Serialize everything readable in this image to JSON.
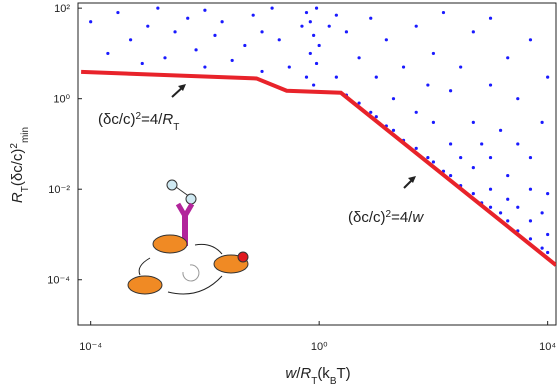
{
  "chart_data": {
    "type": "scatter",
    "xlabel": [
      {
        "text": "w",
        "style": "italic"
      },
      {
        "text": "/",
        "style": "normal"
      },
      {
        "text": "R",
        "style": "italic"
      },
      {
        "text": "T",
        "style": "sub"
      },
      {
        "text": "(k",
        "style": "normal"
      },
      {
        "text": "B",
        "style": "sub"
      },
      {
        "text": "T)",
        "style": "normal"
      }
    ],
    "ylabel": [
      {
        "text": "R",
        "style": "italic"
      },
      {
        "text": "T",
        "style": "sub"
      },
      {
        "text": "(δc/c)",
        "style": "normal"
      },
      {
        "text": "2",
        "style": "sup"
      },
      {
        "text": "min",
        "style": "sub"
      }
    ],
    "annotations": [
      [
        {
          "text": "(δc/c)",
          "style": "normal"
        },
        {
          "text": "2",
          "style": "sup"
        },
        {
          "text": "=4/",
          "style": "normal"
        },
        {
          "text": "R",
          "style": "italic"
        },
        {
          "text": "T",
          "style": "sub"
        }
      ],
      [
        {
          "text": "(δc/c)",
          "style": "normal"
        },
        {
          "text": "2",
          "style": "sup"
        },
        {
          "text": "=4/",
          "style": "normal"
        },
        {
          "text": "w",
          "style": "italic"
        }
      ]
    ],
    "log_x": true,
    "log_y": true,
    "xlim": [
      6e-05,
      14000
    ],
    "ylim": [
      1e-05,
      130
    ],
    "xticks": [
      {
        "value": 0.0001,
        "label": "10⁻⁴"
      },
      {
        "value": 1,
        "label": "10⁰"
      },
      {
        "value": 10000,
        "label": "10⁴"
      }
    ],
    "yticks": [
      {
        "value": 0.0001,
        "label": "10⁻⁴"
      },
      {
        "value": 0.01,
        "label": "10⁻²"
      },
      {
        "value": 1,
        "label": "10⁰"
      },
      {
        "value": 100,
        "label": "10²"
      }
    ],
    "series": [
      {
        "type": "scatter",
        "color": "#1a1aff",
        "x": [
          0.0001,
          0.0002,
          0.0003,
          0.0005,
          0.0008,
          0.001,
          0.0015,
          0.002,
          0.003,
          0.005,
          0.007,
          0.01,
          0.01,
          0.015,
          0.02,
          0.03,
          0.05,
          0.07,
          0.1,
          0.1,
          0.15,
          0.2,
          0.3,
          0.5,
          0.6,
          0.6,
          0.7,
          0.7,
          0.8,
          0.8,
          0.9,
          0.9,
          1,
          1.5,
          2,
          2,
          3,
          3,
          5,
          5,
          8,
          8,
          10,
          10,
          15,
          15,
          20,
          20,
          30,
          30,
          50,
          50,
          50,
          80,
          80,
          100,
          100,
          100,
          150,
          150,
          200,
          200,
          200,
          300,
          300,
          300,
          500,
          500,
          500,
          500,
          700,
          700,
          1000,
          1000,
          1000,
          1000,
          1000,
          1500,
          1500,
          2000,
          2000,
          2000,
          2000,
          3000,
          3000,
          3000,
          3000,
          5000,
          5000,
          5000,
          5000,
          5000,
          8000,
          8000,
          8000,
          10000,
          10000,
          10000,
          10000
        ],
        "y": [
          50,
          10,
          80,
          20,
          6,
          40,
          100,
          8,
          30,
          60,
          12,
          5,
          90,
          25,
          50,
          7,
          15,
          70,
          4,
          30,
          100,
          20,
          5,
          40,
          3,
          80,
          10,
          50,
          2,
          25,
          100,
          6,
          15,
          40,
          3,
          70,
          1.2,
          30,
          0.8,
          8,
          0.5,
          60,
          0.4,
          3,
          0.25,
          20,
          0.2,
          1,
          0.12,
          5,
          0.08,
          0.5,
          40,
          0.05,
          2,
          0.04,
          0.3,
          10,
          0.025,
          80,
          0.02,
          0.1,
          1.5,
          0.012,
          0.05,
          5,
          0.008,
          0.03,
          0.3,
          30,
          0.005,
          0.1,
          0.004,
          0.01,
          0.05,
          2,
          60,
          0.003,
          0.2,
          0.002,
          0.006,
          0.02,
          8,
          0.0012,
          0.004,
          0.1,
          1,
          0.0008,
          0.002,
          0.01,
          0.05,
          20,
          0.0005,
          0.003,
          0.3,
          0.0004,
          0.001,
          0.008,
          3
        ]
      },
      {
        "type": "line",
        "color": "#e8232a",
        "x": [
          6.8e-05,
          0.08,
          0.27,
          2.4,
          14000
        ],
        "y": [
          3.9,
          2.8,
          1.5,
          1.35,
          0.00021
        ]
      }
    ]
  }
}
